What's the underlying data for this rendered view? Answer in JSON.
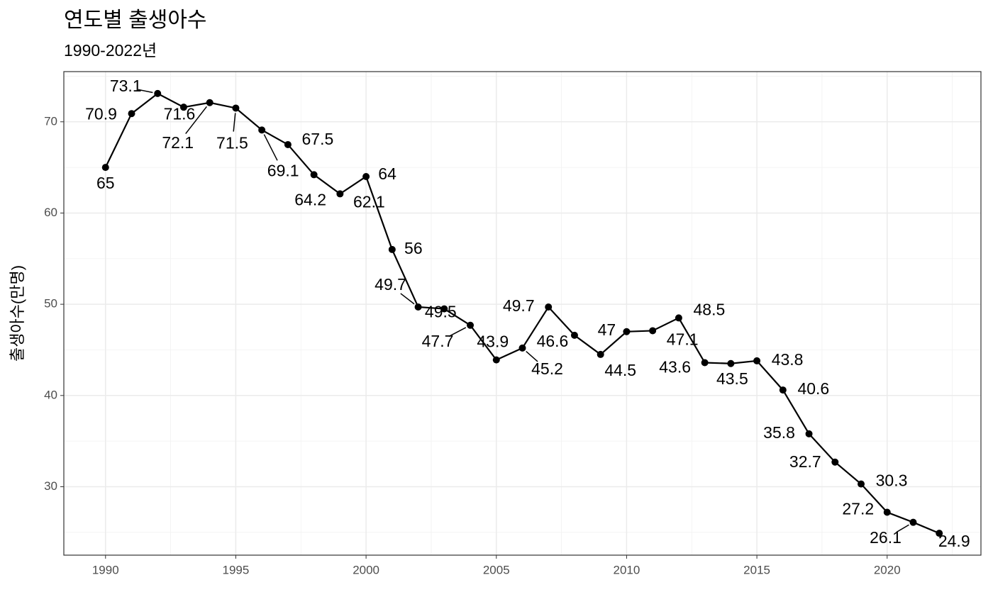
{
  "chart_data": {
    "type": "line",
    "title": "연도별 출생아수",
    "subtitle": "1990-2022년",
    "y_label": "출생아수(만명)",
    "x": [
      1990,
      1991,
      1992,
      1993,
      1994,
      1995,
      1996,
      1997,
      1998,
      1999,
      2000,
      2001,
      2002,
      2003,
      2004,
      2005,
      2006,
      2007,
      2008,
      2009,
      2010,
      2011,
      2012,
      2013,
      2014,
      2015,
      2016,
      2017,
      2018,
      2019,
      2020,
      2021,
      2022
    ],
    "values": [
      65,
      70.9,
      73.1,
      71.6,
      72.1,
      71.5,
      69.1,
      67.5,
      64.2,
      62.1,
      64,
      56,
      49.7,
      49.5,
      47.7,
      43.9,
      45.2,
      49.7,
      46.6,
      44.5,
      47,
      47.1,
      48.5,
      43.6,
      43.5,
      43.8,
      40.6,
      35.8,
      32.7,
      30.3,
      27.2,
      26.1,
      24.9
    ],
    "color": "#000000",
    "xlim": [
      1988.4,
      2023.6
    ],
    "ylim": [
      22.5,
      75.5
    ],
    "xticks": [
      1990,
      1995,
      2000,
      2005,
      2010,
      2015,
      2020
    ],
    "yticks": [
      30,
      40,
      50,
      60,
      70
    ],
    "xticks_minor": [
      1992.5,
      1997.5,
      2002.5,
      2007.5,
      2012.5,
      2017.5,
      2022.5
    ],
    "yticks_minor": [
      25,
      35,
      45,
      55,
      65,
      75
    ],
    "grid": true
  }
}
